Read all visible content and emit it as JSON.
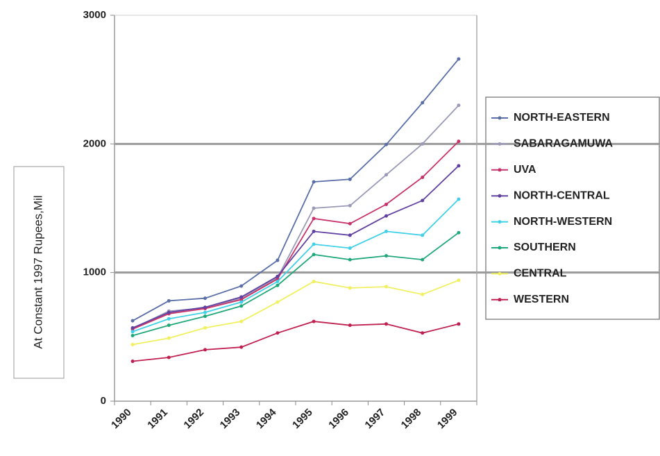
{
  "chart_data": {
    "type": "line",
    "y_label": "At Constant 1997 Rupees,Mil",
    "categories": [
      "1990",
      "1991",
      "1992",
      "1993",
      "1994",
      "1995",
      "1996",
      "1997",
      "1998",
      "1999"
    ],
    "series": [
      {
        "name": "NORTH-EASTERN",
        "color": "#5a6fa8",
        "values": [
          625,
          780,
          800,
          895,
          1095,
          1705,
          1725,
          1995,
          2320,
          2660
        ]
      },
      {
        "name": "SABARAGAMUWA",
        "color": "#9a9ab8",
        "values": [
          565,
          700,
          725,
          800,
          960,
          1500,
          1520,
          1760,
          2000,
          2300
        ]
      },
      {
        "name": "UVA",
        "color": "#c8326a",
        "values": [
          560,
          680,
          720,
          790,
          950,
          1420,
          1380,
          1530,
          1740,
          2020
        ]
      },
      {
        "name": "NORTH-CENTRAL",
        "color": "#6040a0",
        "values": [
          570,
          690,
          730,
          810,
          970,
          1320,
          1290,
          1440,
          1560,
          1830
        ]
      },
      {
        "name": "NORTH-WESTERN",
        "color": "#40d0e8",
        "values": [
          540,
          640,
          690,
          770,
          930,
          1220,
          1190,
          1320,
          1290,
          1570
        ]
      },
      {
        "name": "SOUTHERN",
        "color": "#20a878",
        "values": [
          510,
          590,
          660,
          740,
          900,
          1140,
          1100,
          1130,
          1100,
          1310
        ]
      },
      {
        "name": "CENTRAL",
        "color": "#f0f060",
        "values": [
          440,
          490,
          570,
          620,
          770,
          930,
          880,
          890,
          830,
          940
        ]
      },
      {
        "name": "WESTERN",
        "color": "#c02050",
        "values": [
          310,
          340,
          400,
          420,
          530,
          620,
          590,
          600,
          530,
          600
        ]
      }
    ],
    "ylim": [
      0,
      3000
    ],
    "yticks": [
      0,
      1000,
      2000,
      3000
    ],
    "grid": true,
    "legend": "right"
  }
}
